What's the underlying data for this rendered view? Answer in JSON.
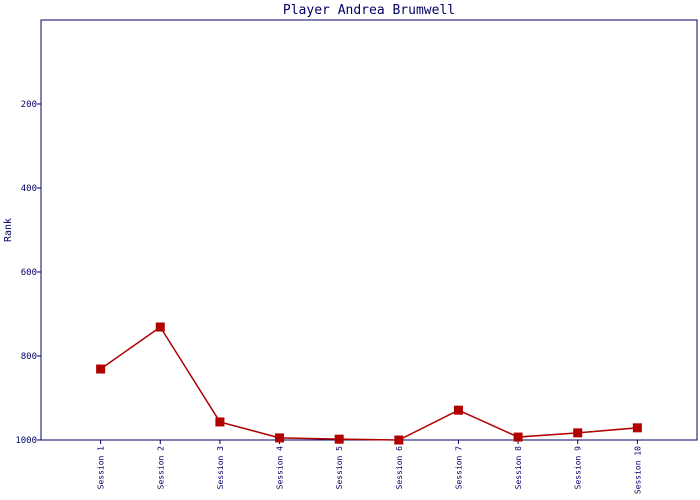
{
  "chart_data": {
    "type": "line",
    "title": "Player Andrea Brumwell",
    "y_label": "Rank",
    "categories": [
      "Session 1",
      "Session 2",
      "Session 3",
      "Session 4",
      "Session 5",
      "Session 6",
      "Session 7",
      "Session 8",
      "Session 9",
      "Session 10"
    ],
    "series": [
      {
        "name": "Rank",
        "color": "#b00000",
        "values": [
          831,
          731,
          957,
          995,
          998,
          1000,
          929,
          993,
          983,
          971
        ]
      }
    ],
    "ylim": [
      0,
      1000
    ],
    "yticks": [
      200,
      400,
      600,
      800,
      1000
    ],
    "y_inverted": true,
    "grid": false,
    "legend": false
  }
}
